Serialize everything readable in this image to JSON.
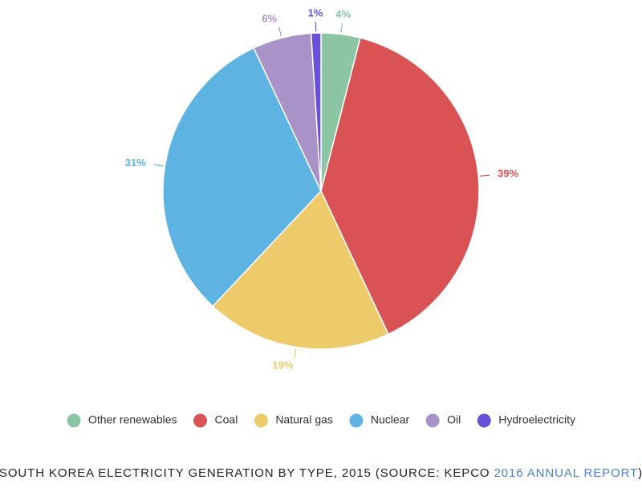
{
  "chart_data": {
    "type": "pie",
    "categories": [
      "Other renewables",
      "Coal",
      "Natural gas",
      "Nuclear",
      "Oil",
      "Hydroelectricity"
    ],
    "values": [
      4,
      39,
      19,
      31,
      6,
      1
    ],
    "value_labels": [
      "4%",
      "39%",
      "19%",
      "31%",
      "6%",
      "1%"
    ],
    "colors": [
      "#8cc5a4",
      "#d95355",
      "#eecb6a",
      "#5db4e3",
      "#a992c8",
      "#6a4fd8"
    ],
    "legend": "bottom"
  },
  "caption": {
    "text": "SOUTH KOREA ELECTRICITY GENERATION BY TYPE, 2015 (SOURCE: KEPCO ",
    "link": "2016 ANNUAL REPORT",
    "end": ")"
  }
}
